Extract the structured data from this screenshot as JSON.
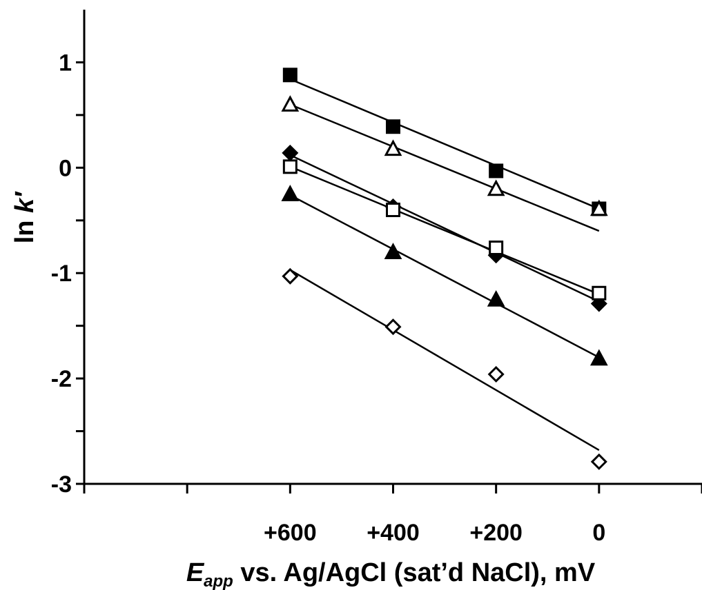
{
  "chart_data": {
    "type": "scatter",
    "title": "",
    "xlabel": {
      "italic": "E",
      "subscript": "app",
      "rest": " vs. Ag/AgCl (sat’d NaCl), mV"
    },
    "ylabel": {
      "prefix": "ln ",
      "italic": "k′"
    },
    "x_reversed": true,
    "xlim": [
      -200,
      1000
    ],
    "ylim": [
      -3,
      1.5
    ],
    "x_tick_values": [
      1000,
      800,
      600,
      400,
      200,
      0,
      -200
    ],
    "x_tick_labels": [
      {
        "value": 600,
        "label": "+600"
      },
      {
        "value": 400,
        "label": "+400"
      },
      {
        "value": 200,
        "label": "+200"
      },
      {
        "value": 0,
        "label": "0"
      }
    ],
    "y_tick_values": [
      1,
      0.5,
      0,
      -0.5,
      -1,
      -1.5,
      -2,
      -2.5,
      -3
    ],
    "y_tick_labels": [
      {
        "value": 1,
        "label": "1"
      },
      {
        "value": 0,
        "label": "0"
      },
      {
        "value": -1,
        "label": "-1"
      },
      {
        "value": -2,
        "label": "-2"
      },
      {
        "value": -3,
        "label": "-3"
      }
    ],
    "grid": false,
    "legend": "none",
    "series": [
      {
        "marker": "square-filled",
        "points": [
          [
            600,
            0.88
          ],
          [
            400,
            0.39
          ],
          [
            200,
            -0.03
          ],
          [
            0,
            -0.39
          ]
        ],
        "fit": [
          [
            600,
            0.84
          ],
          [
            0,
            -0.39
          ]
        ]
      },
      {
        "marker": "triangle-open",
        "points": [
          [
            600,
            0.6
          ],
          [
            400,
            0.18
          ],
          [
            200,
            -0.2
          ],
          [
            0,
            -0.39
          ]
        ],
        "fit": [
          [
            600,
            0.6
          ],
          [
            0,
            -0.6
          ]
        ]
      },
      {
        "marker": "diamond-filled",
        "points": [
          [
            600,
            0.14
          ],
          [
            400,
            -0.37
          ],
          [
            200,
            -0.83
          ],
          [
            0,
            -1.29
          ]
        ],
        "fit": [
          [
            600,
            0.12
          ],
          [
            0,
            -1.27
          ]
        ]
      },
      {
        "marker": "square-open",
        "points": [
          [
            600,
            0.01
          ],
          [
            400,
            -0.4
          ],
          [
            200,
            -0.76
          ],
          [
            0,
            -1.19
          ]
        ],
        "fit": [
          [
            600,
            0.01
          ],
          [
            0,
            -1.2
          ]
        ]
      },
      {
        "marker": "triangle-filled",
        "points": [
          [
            600,
            -0.25
          ],
          [
            400,
            -0.8
          ],
          [
            200,
            -1.25
          ],
          [
            0,
            -1.81
          ]
        ],
        "fit": [
          [
            600,
            -0.26
          ],
          [
            0,
            -1.8
          ]
        ]
      },
      {
        "marker": "diamond-open",
        "points": [
          [
            600,
            -1.03
          ],
          [
            400,
            -1.51
          ],
          [
            200,
            -1.96
          ],
          [
            0,
            -2.79
          ]
        ],
        "fit": [
          [
            600,
            -0.97
          ],
          [
            0,
            -2.68
          ]
        ]
      }
    ]
  }
}
